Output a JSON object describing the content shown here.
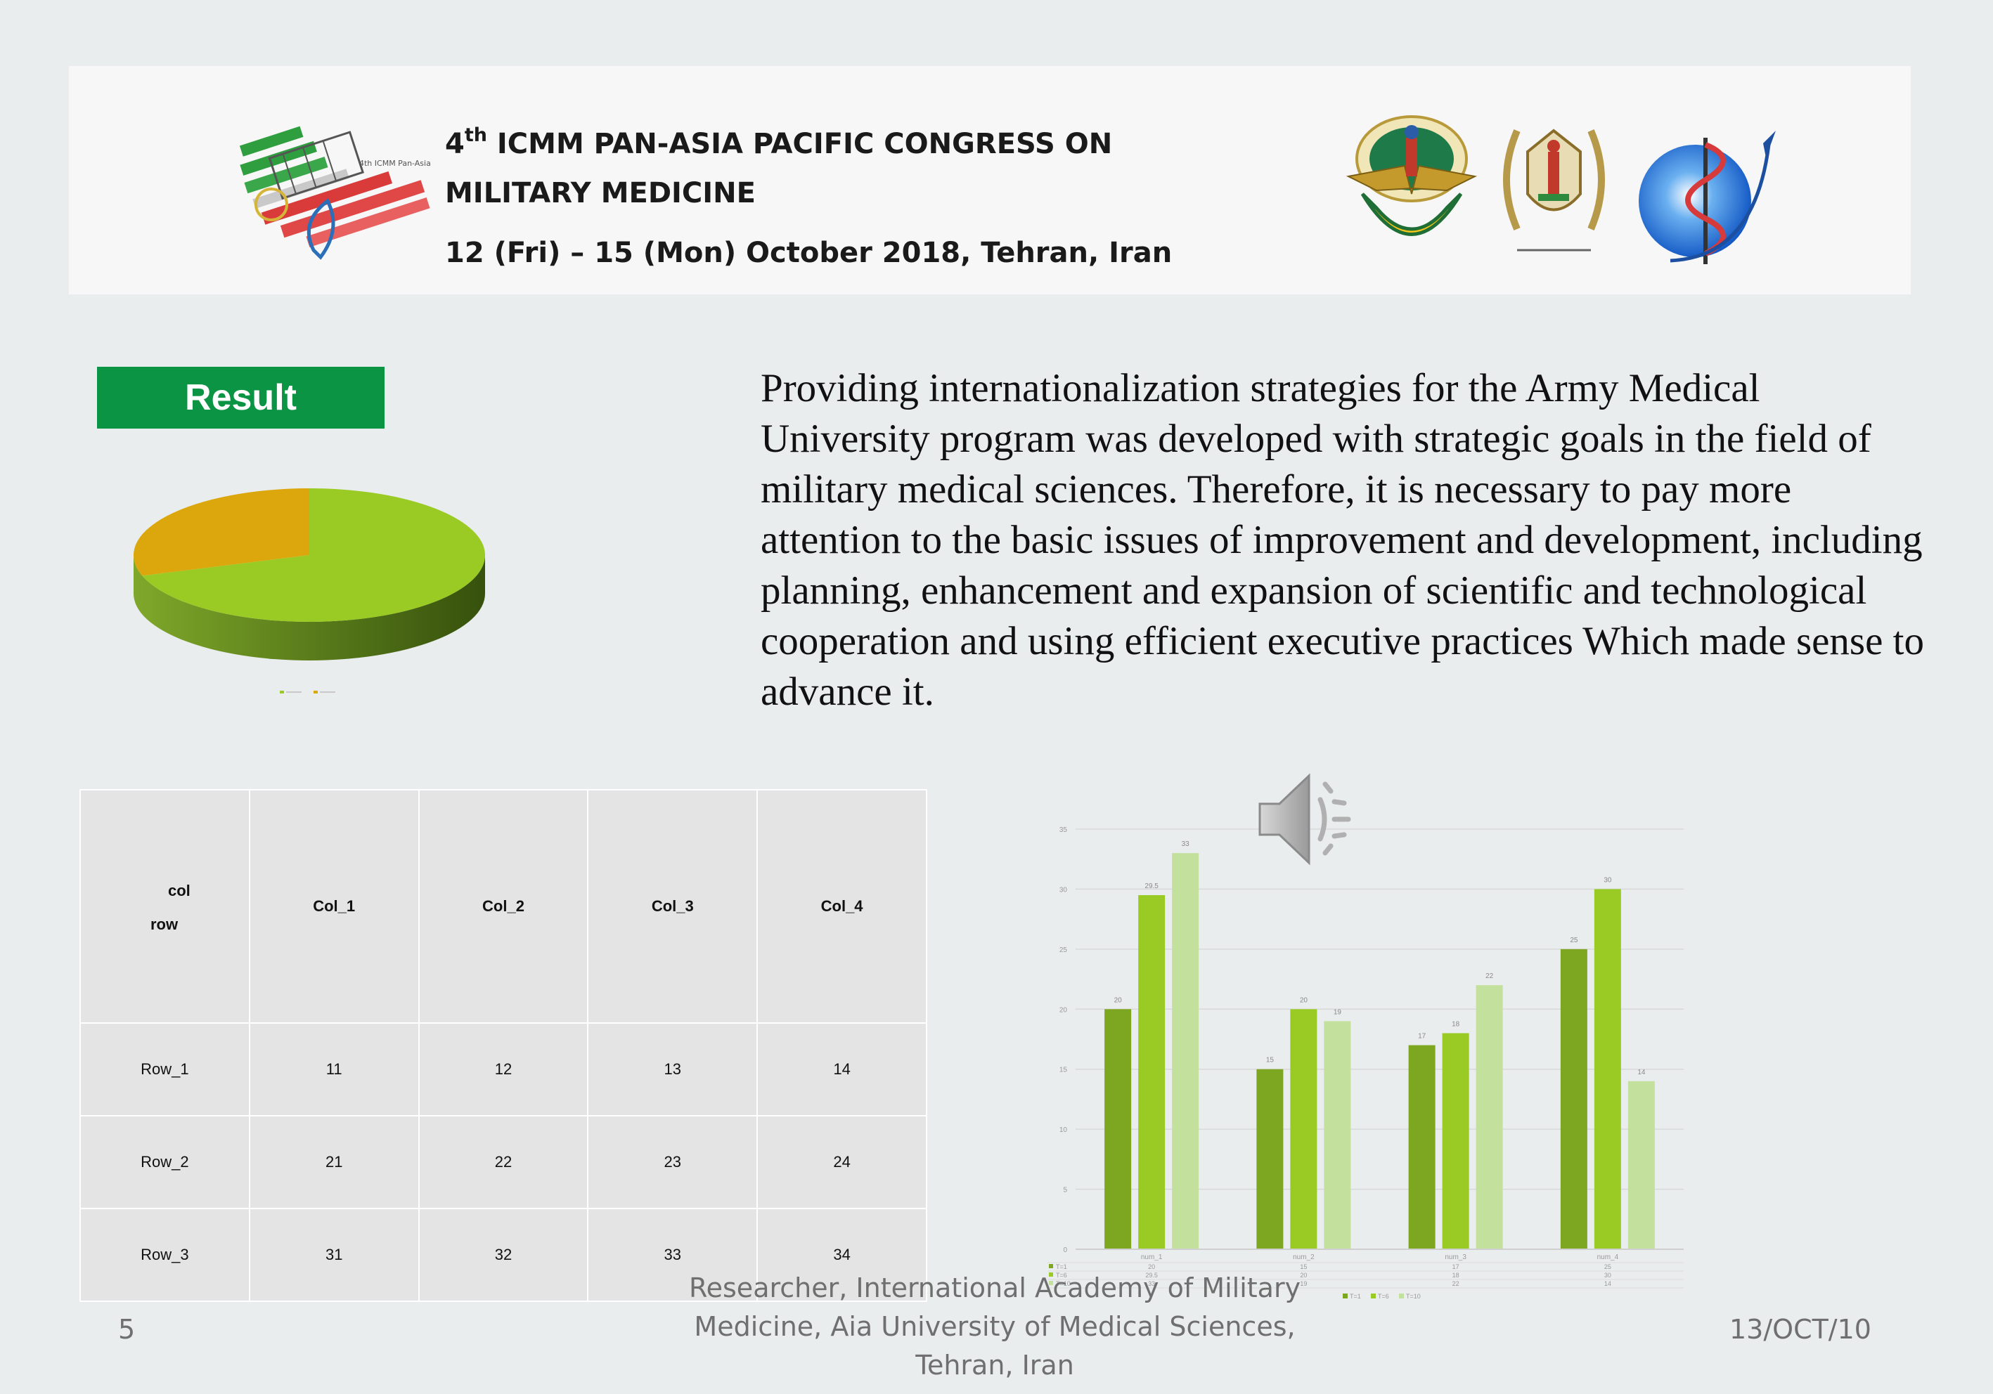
{
  "banner": {
    "title_prefix": "4",
    "title_sup": "th",
    "title_line1_rest": " ICMM PAN-ASIA PACIFIC CONGRESS ON",
    "title_line2": "MILITARY MEDICINE",
    "date_line": "12 (Fri) – 15 (Mon) October 2018, Tehran, Iran"
  },
  "result_label": "Result",
  "description": "Providing internationalization strategies for the Army Medical University program was developed with strategic goals in the field of military medical sciences. Therefore, it is necessary to pay more attention to the basic issues of improvement and development, including planning, enhancement and expansion of scientific and technological cooperation and using efficient executive practices Which made sense to advance it.",
  "table": {
    "corner_col": "col",
    "corner_row": "row",
    "columns": [
      "Col_1",
      "Col_2",
      "Col_3",
      "Col_4"
    ],
    "rows": [
      {
        "label": "Row_1",
        "cells": [
          "11",
          "12",
          "13",
          "14"
        ]
      },
      {
        "label": "Row_2",
        "cells": [
          "21",
          "22",
          "23",
          "24"
        ]
      },
      {
        "label": "Row_3",
        "cells": [
          "31",
          "32",
          "33",
          "34"
        ]
      }
    ]
  },
  "footer": {
    "slide_number": "5",
    "text": "Researcher, International Academy of Military Medicine, Aia University of Medical Sciences, Tehran, Iran",
    "date": "13/OCT/10"
  },
  "icons": [
    "event-logo",
    "armed-forces-emblem",
    "army-emblem",
    "globe-logo",
    "speaker-icon"
  ],
  "colors": {
    "result_green": "#0b9444",
    "pie_main": "#9acb24",
    "pie_second": "#dba70c",
    "bar_dark": "#7ea721",
    "bar_mid": "#9acb24",
    "bar_light": "#c4e09d"
  },
  "chart_data": [
    {
      "type": "pie",
      "labels": [
        "",
        ""
      ],
      "values": [
        70,
        30
      ],
      "colors": [
        "#9acb24",
        "#dba70c"
      ]
    },
    {
      "type": "bar",
      "categories": [
        "num_1",
        "num_2",
        "num_3",
        "num_4"
      ],
      "series": [
        {
          "name": "T=1",
          "values": [
            20,
            15,
            17,
            25
          ]
        },
        {
          "name": "T=6",
          "values": [
            29.5,
            20,
            18,
            30
          ]
        },
        {
          "name": "T=10",
          "values": [
            33,
            19,
            22,
            14
          ]
        }
      ],
      "ylim": [
        0,
        35
      ],
      "yticks": [
        0,
        5,
        10,
        15,
        20,
        25,
        30,
        35
      ],
      "grid": true,
      "legend": "bottom",
      "data_table": true
    }
  ]
}
